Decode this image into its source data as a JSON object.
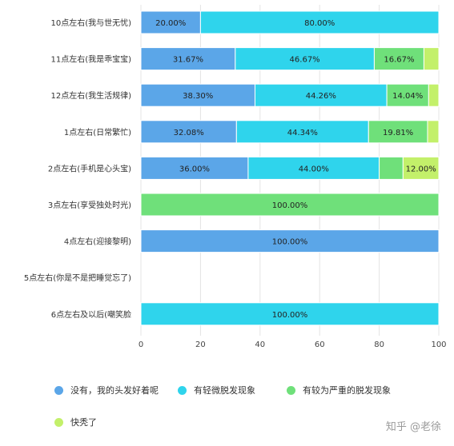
{
  "chart_data": {
    "type": "bar",
    "orientation": "horizontal",
    "stacked": true,
    "categories": [
      "10点左右(我与世无忧)",
      "11点左右(我是乖宝宝)",
      "12点左右(我生活规律)",
      "1点左右(日常繁忙)",
      "2点左右(手机是心头宝)",
      "3点左右(享受独处时光)",
      "4点左右(迎接黎明)",
      "5点左右(你是不是把睡觉忘了)",
      "6点左右及以后(嘲笑脸"
    ],
    "series": [
      {
        "name": "没有，我的头发好着呢",
        "color": "#5ba6e8",
        "values": [
          20.0,
          31.67,
          38.3,
          32.08,
          36.0,
          0,
          100.0,
          0,
          0
        ]
      },
      {
        "name": "有轻微脱发现象",
        "color": "#2fd4ec",
        "values": [
          80.0,
          46.67,
          44.26,
          44.34,
          44.0,
          0,
          0,
          0,
          100.0
        ]
      },
      {
        "name": "有较为严重的脱发现象",
        "color": "#6fe07a",
        "values": [
          0,
          16.67,
          14.04,
          19.81,
          8.0,
          100.0,
          0,
          0,
          0
        ]
      },
      {
        "name": "快秃了",
        "color": "#c3f06a",
        "values": [
          0,
          5.0,
          3.4,
          3.77,
          12.0,
          0,
          0,
          0,
          0
        ]
      }
    ],
    "data_labels": [
      [
        "20.00%",
        "80.00%",
        "",
        ""
      ],
      [
        "31.67%",
        "46.67%",
        "16.67%",
        ""
      ],
      [
        "38.30%",
        "44.26%",
        "14.04%",
        ""
      ],
      [
        "32.08%",
        "44.34%",
        "19.81%",
        ""
      ],
      [
        "36.00%",
        "44.00%",
        "",
        "12.00%"
      ],
      [
        "",
        "",
        "100.00%",
        ""
      ],
      [
        "100.00%",
        "",
        "",
        ""
      ],
      [
        "",
        "",
        "",
        ""
      ],
      [
        "",
        "100.00%",
        "",
        ""
      ]
    ],
    "x_ticks": [
      "0",
      "20",
      "40",
      "60",
      "80",
      "100"
    ],
    "xlim": [
      0,
      100
    ],
    "grid": true,
    "legend_position": "bottom"
  },
  "watermark": "知乎 @老徐"
}
